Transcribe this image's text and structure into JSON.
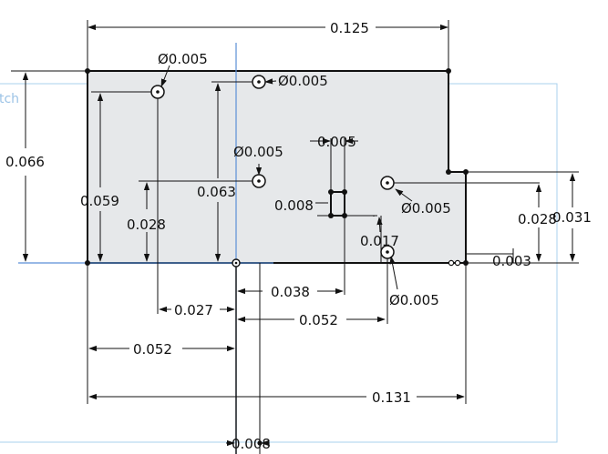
{
  "sketch": {
    "plane_label": "tch",
    "colors": {
      "face_fill": "#e6e8ea",
      "outline": "#111111",
      "dimension": "#111111",
      "axis": "#5b8fd6",
      "plane": "#a9d0ee"
    }
  },
  "dimensions": {
    "width_top": "0.125",
    "height_left": "0.066",
    "height_059": "0.059",
    "height_028": "0.028",
    "height_063": "0.063",
    "hole_dia_1": "Ø0.005",
    "hole_dia_2": "Ø0.005",
    "hole_dia_3": "Ø0.005",
    "hole_dia_4": "Ø0.005",
    "hole_dia_5": "Ø0.005",
    "sq_width": "0.005",
    "sq_height": "0.008",
    "offset_017": "0.017",
    "right_028": "0.028",
    "right_031": "0.031",
    "right_003": "0.003",
    "bottom_027": "0.027",
    "bottom_038": "0.038",
    "bottom_052_right": "0.052",
    "bottom_052_left": "0.052",
    "bottom_131": "0.131",
    "bottom_008": "0.008"
  }
}
